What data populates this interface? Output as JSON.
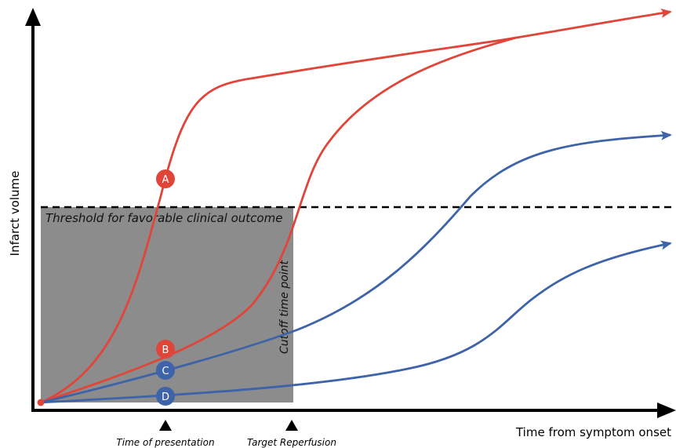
{
  "y_axis_label": "Infarct volume",
  "x_axis_label": "Time from symptom onset",
  "threshold_label": "Threshold for favorable clinical outcome",
  "cutoff_label": "Cutoff time point",
  "markers": [
    {
      "label": "Time of presentation"
    },
    {
      "label": "Target Reperfusion"
    }
  ],
  "curves": [
    {
      "id": "A",
      "label": "A",
      "color": "#e0453a"
    },
    {
      "id": "B",
      "label": "B",
      "color": "#e0453a"
    },
    {
      "id": "C",
      "label": "C",
      "color": "#3e63a8"
    },
    {
      "id": "D",
      "label": "D",
      "color": "#3e63a8"
    }
  ],
  "colors": {
    "red_curves": "#e0453a",
    "blue_curves": "#3e63a8",
    "shaded_region": "#8c8c8c",
    "axes": "#000000"
  }
}
